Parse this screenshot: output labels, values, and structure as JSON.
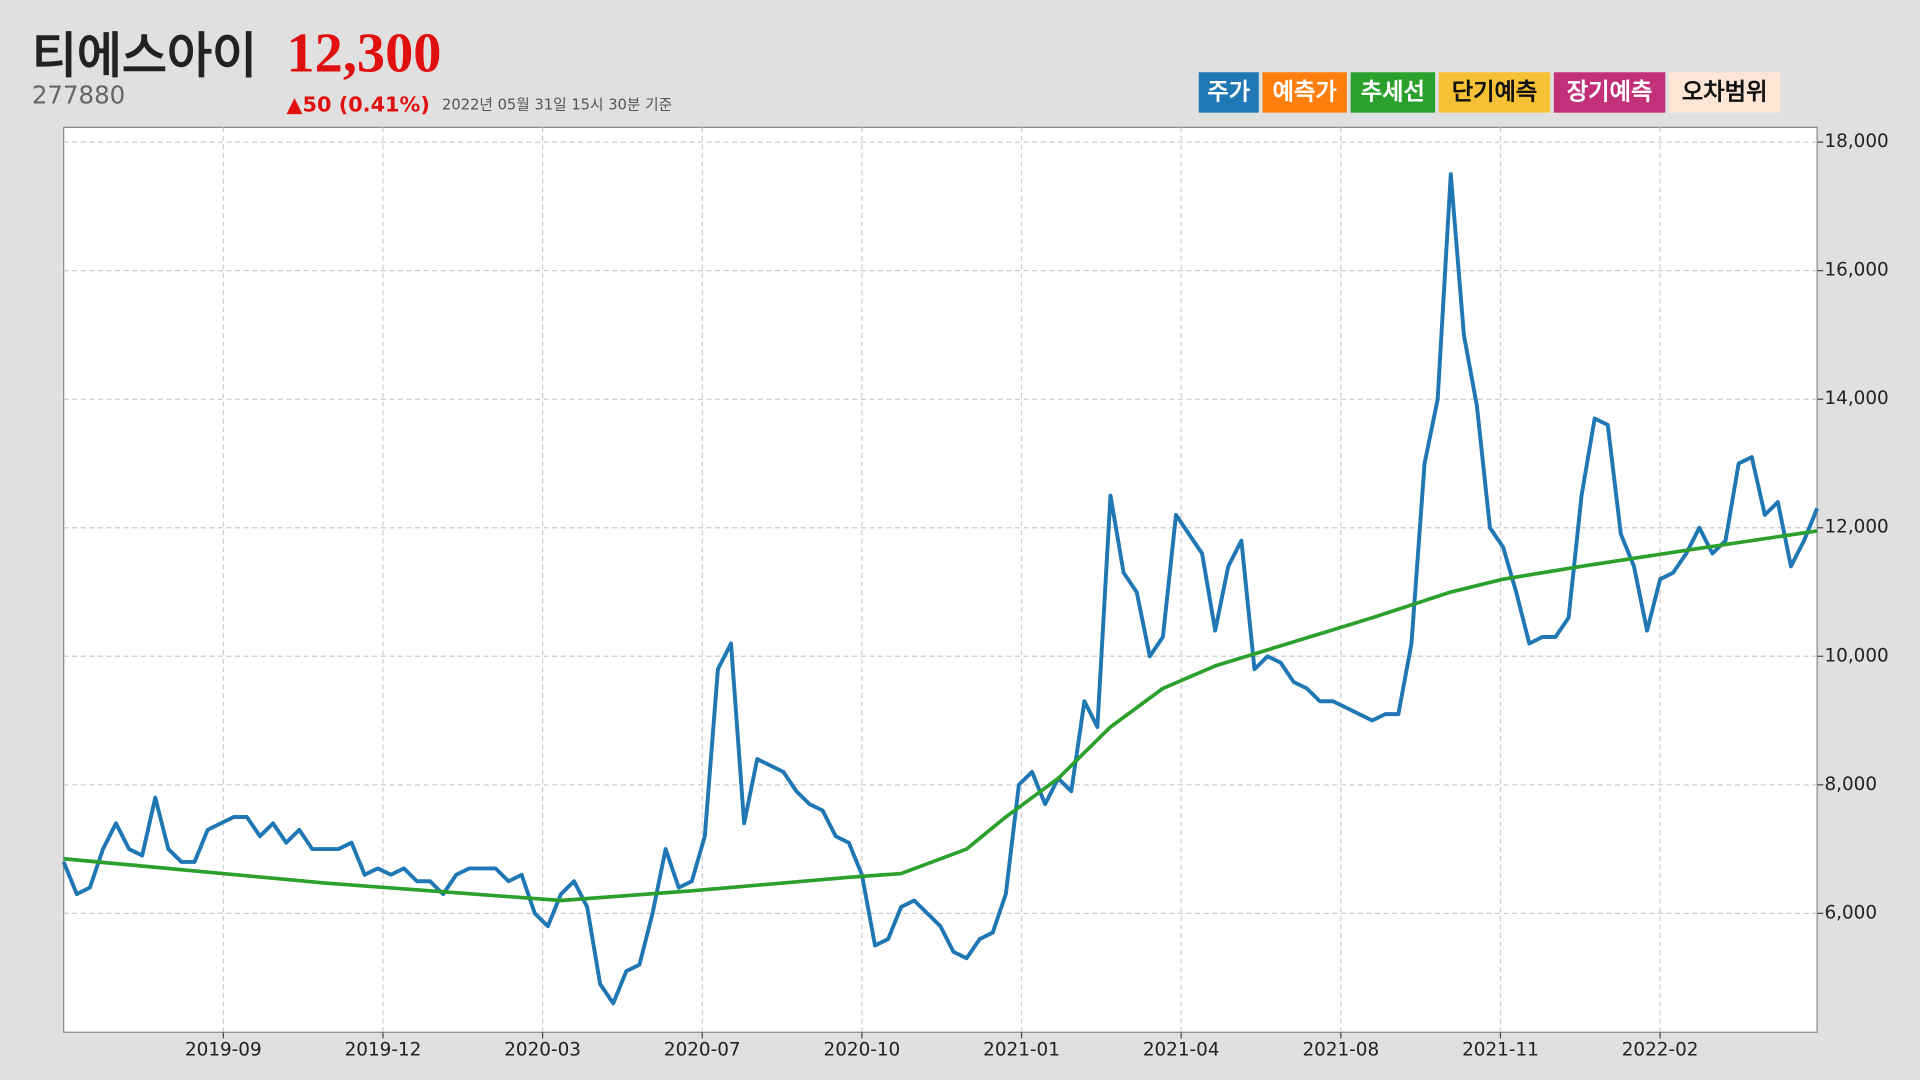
{
  "chart_data": {
    "type": "line",
    "title": "티에스아이",
    "price": "12,300",
    "code": "277880",
    "change": "▲50 (0.41%)",
    "timestamp": "2022년 05월 31일 15시 30분 기준",
    "xlim": [
      0,
      670
    ],
    "ylim": [
      4150,
      18230
    ],
    "xticks": [
      {
        "value": 61,
        "label": "2019-09"
      },
      {
        "value": 122,
        "label": "2019-12"
      },
      {
        "value": 183,
        "label": "2020-03"
      },
      {
        "value": 244,
        "label": "2020-07"
      },
      {
        "value": 305,
        "label": "2020-10"
      },
      {
        "value": 366,
        "label": "2021-01"
      },
      {
        "value": 427,
        "label": "2021-04"
      },
      {
        "value": 488,
        "label": "2021-08"
      },
      {
        "value": 549,
        "label": "2021-11"
      },
      {
        "value": 610,
        "label": "2022-02"
      }
    ],
    "yticks": [
      {
        "value": 6000,
        "label": "6,000"
      },
      {
        "value": 8000,
        "label": "8,000"
      },
      {
        "value": 10000,
        "label": "10,000"
      },
      {
        "value": 12000,
        "label": "12,000"
      },
      {
        "value": 14000,
        "label": "14,000"
      },
      {
        "value": 16000,
        "label": "16,000"
      },
      {
        "value": 18000,
        "label": "18,000"
      }
    ],
    "grid": true,
    "series": [
      {
        "name": "주가",
        "color": "#1f77b4",
        "x": [
          0,
          5,
          10,
          15,
          20,
          25,
          30,
          35,
          40,
          45,
          50,
          55,
          60,
          65,
          70,
          75,
          80,
          85,
          90,
          95,
          100,
          105,
          110,
          115,
          120,
          125,
          130,
          135,
          140,
          145,
          150,
          155,
          160,
          165,
          170,
          175,
          180,
          185,
          190,
          195,
          200,
          205,
          210,
          215,
          220,
          225,
          230,
          235,
          240,
          245,
          250,
          255,
          260,
          265,
          270,
          275,
          280,
          285,
          290,
          295,
          300,
          305,
          310,
          315,
          320,
          325,
          330,
          335,
          340,
          345,
          350,
          355,
          360,
          365,
          370,
          375,
          380,
          385,
          390,
          395,
          400,
          405,
          410,
          415,
          420,
          425,
          430,
          435,
          440,
          445,
          450,
          455,
          460,
          465,
          470,
          475,
          480,
          485,
          490,
          495,
          500,
          505,
          510,
          515,
          520,
          525,
          530,
          535,
          540,
          545,
          550,
          555,
          560,
          565,
          570,
          575,
          580,
          585,
          590,
          595,
          600,
          605,
          610,
          615,
          620,
          625,
          630,
          635,
          640,
          645,
          650,
          655,
          660,
          665,
          670
        ],
        "values": [
          6800,
          6300,
          6400,
          7000,
          7400,
          7000,
          6900,
          7800,
          7000,
          6800,
          6800,
          7300,
          7400,
          7500,
          7500,
          7200,
          7400,
          7100,
          7300,
          7000,
          7000,
          7000,
          7100,
          6600,
          6700,
          6600,
          6700,
          6500,
          6500,
          6300,
          6600,
          6700,
          6700,
          6700,
          6500,
          6600,
          6000,
          5800,
          6300,
          6500,
          6100,
          4900,
          4600,
          5100,
          5200,
          6000,
          7000,
          6400,
          6500,
          7200,
          9800,
          10200,
          7400,
          8400,
          8300,
          8200,
          7900,
          7700,
          7600,
          7200,
          7100,
          6600,
          5500,
          5600,
          6100,
          6200,
          6000,
          5800,
          5400,
          5300,
          5600,
          5700,
          6300,
          8000,
          8200,
          7700,
          8100,
          7900,
          9300,
          8900,
          12500,
          11300,
          11000,
          10000,
          10300,
          12200,
          11900,
          11600,
          10400,
          11400,
          11800,
          9800,
          10000,
          9900,
          9600,
          9500,
          9300,
          9300,
          9200,
          9100,
          9000,
          9100,
          9100,
          10200,
          13000,
          14000,
          17500,
          15000,
          13900,
          12000,
          11700,
          11000,
          10200,
          10300,
          10300,
          10600,
          12500,
          13700,
          13600,
          11900,
          11400,
          10400,
          11200,
          11300,
          11600,
          12000,
          11600,
          11800,
          13000,
          13100,
          12200,
          12400,
          11400,
          11800,
          12300
        ]
      },
      {
        "name": "추세선",
        "color": "#2ca02c",
        "x": [
          0,
          100,
          190,
          240,
          300,
          320,
          345,
          360,
          380,
          400,
          420,
          440,
          460,
          500,
          530,
          550,
          580,
          620,
          670
        ],
        "values": [
          6850,
          6470,
          6200,
          6350,
          6560,
          6620,
          7000,
          7500,
          8100,
          8900,
          9500,
          9850,
          10100,
          10600,
          11000,
          11200,
          11400,
          11650,
          11950
        ]
      }
    ],
    "legend_extra": [
      {
        "name": "예측가",
        "color": "#ff7f0e"
      },
      {
        "name": "단기예측",
        "color": "#f7c136"
      },
      {
        "name": "장기예측",
        "color": "#c2307a"
      },
      {
        "name": "오차범위",
        "color": "#fde6d6"
      }
    ]
  }
}
